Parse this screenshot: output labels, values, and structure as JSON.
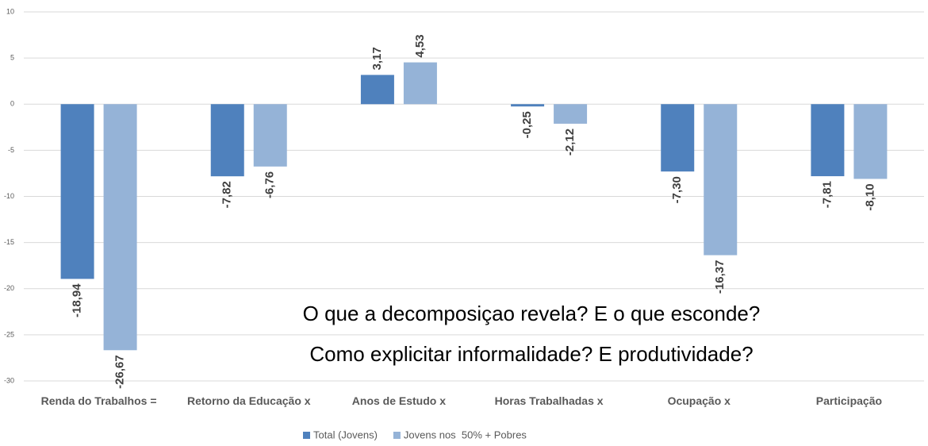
{
  "chart_data": {
    "type": "bar",
    "categories": [
      "Renda do Trabalhos =",
      "Retorno da Educação x",
      "Anos de Estudo x",
      "Horas Trabalhadas x",
      "Ocupação x",
      "Participação"
    ],
    "series": [
      {
        "name": "Total (Jovens)",
        "color": "#4f81bd",
        "values": [
          -18.94,
          -7.82,
          3.17,
          -0.25,
          -7.3,
          -7.81
        ],
        "value_labels": [
          "-18,94",
          "-7,82",
          "3,17",
          "-0,25",
          "-7,30",
          "-7,81"
        ]
      },
      {
        "name": "Jovens nos  50% + Pobres",
        "color": "#95b3d7",
        "values": [
          -26.67,
          -6.76,
          4.53,
          -2.12,
          -16.37,
          -8.1
        ],
        "value_labels": [
          "-26,67",
          "-6,76",
          "4,53",
          "-2,12",
          "-16,37",
          "-8,10"
        ]
      }
    ],
    "ylim": [
      -30,
      10
    ],
    "yticks": [
      -30,
      -25,
      -20,
      -15,
      -10,
      -5,
      0,
      5,
      10
    ],
    "grid": true,
    "annotations": [
      "O que a decomposiçao revela? E o que esconde?",
      "Como explicitar informalidade? E produtividade?"
    ]
  }
}
